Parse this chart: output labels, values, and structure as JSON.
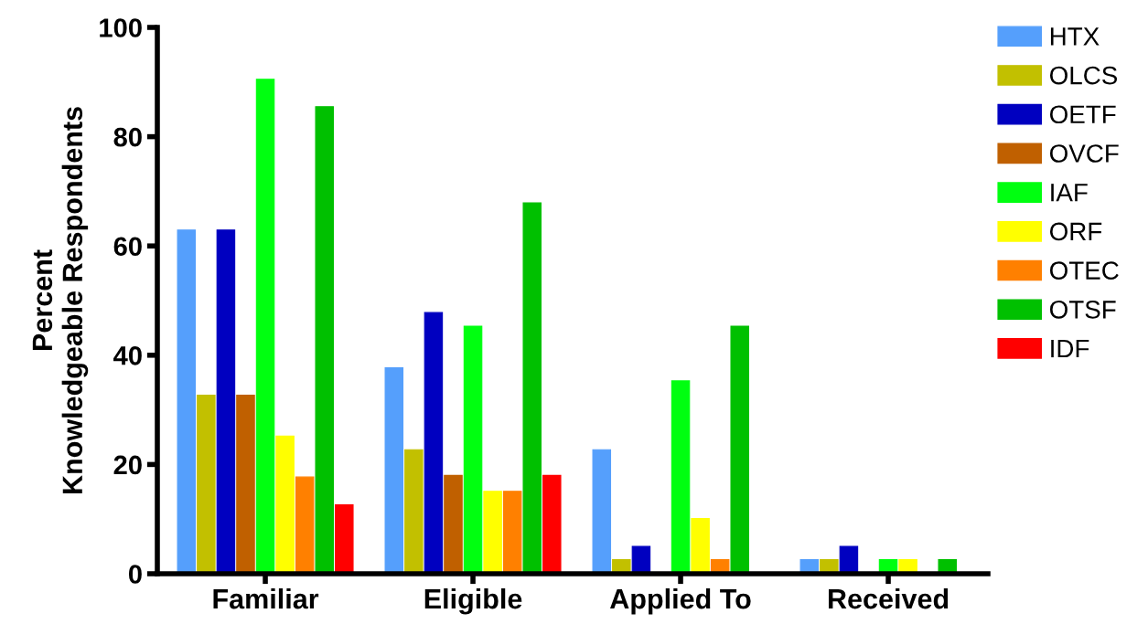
{
  "chart_data": {
    "type": "bar",
    "ylabel": "Percent\nKnowledgeable Respondents",
    "categories": [
      "Familiar",
      "Eligible",
      "Applied To",
      "Received"
    ],
    "ylim": [
      0,
      100
    ],
    "yticks": [
      0,
      20,
      40,
      60,
      80,
      100
    ],
    "grid": false,
    "legend": "top right",
    "series": [
      {
        "name": "HTX",
        "color": "#559ffc",
        "values": [
          62.9,
          37.7,
          22.7,
          2.6
        ]
      },
      {
        "name": "OLCS",
        "color": "#c2c000",
        "values": [
          32.7,
          22.7,
          2.6,
          2.6
        ]
      },
      {
        "name": "OETF",
        "color": "#0000c0",
        "values": [
          62.9,
          47.8,
          5.0,
          5.0
        ]
      },
      {
        "name": "OVCF",
        "color": "#c06000",
        "values": [
          32.7,
          18.0,
          0,
          0
        ]
      },
      {
        "name": "IAF",
        "color": "#00ff10",
        "values": [
          90.5,
          45.3,
          35.3,
          2.6
        ]
      },
      {
        "name": "ORF",
        "color": "#ffff00",
        "values": [
          25.2,
          15.1,
          10.1,
          2.6
        ]
      },
      {
        "name": "OTEC",
        "color": "#ff8000",
        "values": [
          17.7,
          15.1,
          2.6,
          0
        ]
      },
      {
        "name": "OTSF",
        "color": "#00c000",
        "values": [
          85.5,
          67.9,
          45.3,
          2.6
        ]
      },
      {
        "name": "IDF",
        "color": "#ff0000",
        "values": [
          12.6,
          18.0,
          0,
          0
        ]
      }
    ]
  }
}
